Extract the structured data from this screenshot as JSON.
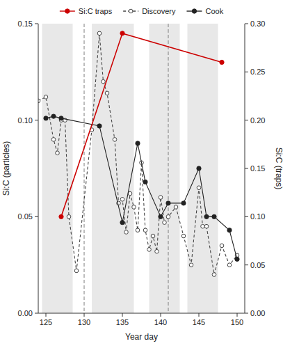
{
  "chart_data": {
    "type": "line",
    "xlabel": "Year day",
    "ylabel": "Si:C (particles)",
    "y2label": "Si:C (traps)",
    "xlim": [
      124,
      151
    ],
    "xticks": [
      125,
      130,
      135,
      140,
      145,
      150
    ],
    "ylim": [
      0.0,
      0.15
    ],
    "yticks": [
      {
        "value": 0.0,
        "label": "0.00"
      },
      0.05,
      {
        "value": 0.1,
        "label": "0.10"
      },
      0.15
    ],
    "y2lim": [
      0.0,
      0.3
    ],
    "y2ticks": [
      {
        "value": 0.0,
        "label": "0.00"
      },
      0.05,
      {
        "value": 0.1,
        "label": "0.10"
      },
      0.15,
      {
        "value": 0.2,
        "label": "0.20"
      },
      0.25,
      {
        "value": 0.3,
        "label": "0.30"
      }
    ],
    "grid": false,
    "legend": "top",
    "bands": {
      "ranges": [
        [
          124.5,
          128.5
        ],
        [
          131.0,
          136.5
        ],
        [
          138.5,
          142.5
        ],
        [
          143.5,
          147.5
        ]
      ],
      "color": "#e8e8e8"
    },
    "vlines": {
      "values": [
        130,
        141
      ],
      "line_style": "dashed"
    },
    "series": [
      {
        "name": "Si:C traps",
        "axis": "y2",
        "color": "#cc0000",
        "marker": "circle",
        "line_style": "solid",
        "x": [
          127,
          135,
          148
        ],
        "values": [
          0.1,
          0.29,
          0.26
        ]
      },
      {
        "name": "Discovery",
        "color": "#444444",
        "marker": "open-circle",
        "line_style": "dashed",
        "x": [
          124,
          125,
          126,
          126.5,
          127,
          127.5,
          128,
          129,
          131,
          132,
          132.5,
          133,
          134,
          134.5,
          135,
          135.5,
          136,
          136.5,
          137,
          137.5,
          138,
          138.5,
          139,
          139.5,
          140,
          140.5,
          141,
          142,
          143,
          144,
          145,
          145.5,
          146,
          147,
          148,
          149,
          150
        ],
        "values": [
          0.11,
          0.112,
          0.09,
          0.083,
          0.1,
          0.1,
          0.05,
          0.022,
          0.095,
          0.145,
          0.12,
          0.114,
          0.09,
          0.057,
          0.059,
          0.042,
          0.062,
          0.055,
          0.043,
          0.078,
          0.043,
          0.033,
          0.04,
          0.032,
          0.06,
          0.047,
          0.05,
          0.055,
          0.04,
          0.025,
          0.065,
          0.045,
          0.045,
          0.02,
          0.035,
          0.025,
          0.03
        ]
      },
      {
        "name": "Cook",
        "color": "#222222",
        "marker": "circle",
        "line_style": "solid",
        "x": [
          125,
          126,
          127,
          132,
          135,
          137,
          138,
          140,
          141,
          143,
          145,
          146,
          147,
          149,
          150
        ],
        "values": [
          0.101,
          0.102,
          0.101,
          0.097,
          0.047,
          0.088,
          0.068,
          0.05,
          0.057,
          0.057,
          0.075,
          0.05,
          0.05,
          0.043,
          0.028
        ]
      }
    ]
  }
}
